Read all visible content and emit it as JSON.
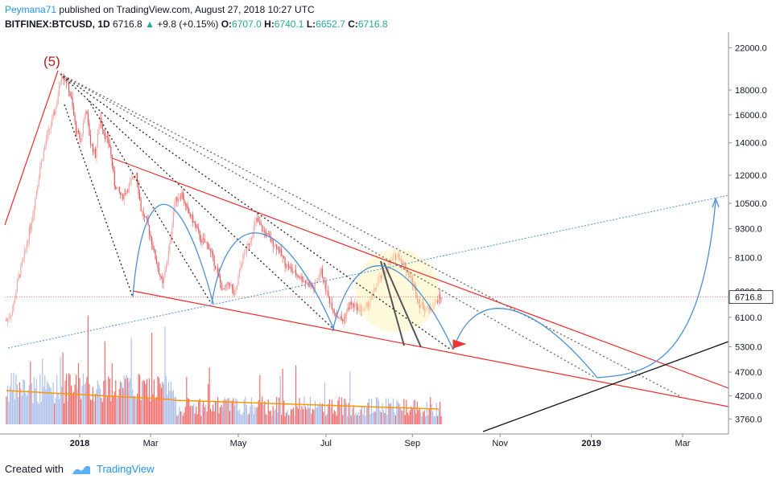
{
  "header": {
    "author": "Peymana71",
    "published_text": "published on TradingView.com, August 27, 2018 10:27 UTC",
    "symbol": "BITFINEX:BTCUSD, 1D",
    "last": "6716.8",
    "change": "+9.8 (+0.15%)",
    "open_label": "O:",
    "open": "6707.0",
    "high_label": "H:",
    "high": "6740.1",
    "low_label": "L:",
    "low": "6652.7",
    "close_label": "C:",
    "close": "6716.8"
  },
  "footer": {
    "created_with": "Created with",
    "brand": "TradingView"
  },
  "colors": {
    "up": "#26a69a",
    "down": "#ef5350",
    "candle_up": "#f0a8a5",
    "candle_down": "#e0585a",
    "trendline": "#ef2b2b",
    "arc": "#4a90d9",
    "volume_ma": "#ff9800",
    "accent": "#2196f3"
  },
  "chart_data": {
    "type": "candlestick",
    "symbol": "BITFINEX:BTCUSD",
    "interval": "1D",
    "y_scale": "log",
    "ylim": [
      3500,
      23000
    ],
    "y_ticks": [
      22000,
      18000,
      16000,
      14000,
      12000,
      10500,
      9300,
      8100,
      6900,
      6100,
      5300,
      4700,
      4200,
      3760
    ],
    "y_tick_labels": [
      "22000.0",
      "18000.0",
      "16000.0",
      "14000.0",
      "12000.0",
      "10500.0",
      "9300.0",
      "8100.0",
      "6900.0",
      "6100.0",
      "5300.0",
      "4700.0",
      "4200.0",
      "3760.0"
    ],
    "x_ticks": [
      "2018",
      "Mar",
      "May",
      "Jul",
      "Sep",
      "Nov",
      "2019",
      "Mar"
    ],
    "last_price_label": "6716.8",
    "wave_label": "(5)",
    "price_path": [
      [
        0,
        6000
      ],
      [
        5,
        6300
      ],
      [
        10,
        7400
      ],
      [
        15,
        8200
      ],
      [
        22,
        10000
      ],
      [
        28,
        12500
      ],
      [
        34,
        14500
      ],
      [
        38,
        15500
      ],
      [
        42,
        17000
      ],
      [
        46,
        19500
      ],
      [
        50,
        18800
      ],
      [
        54,
        17200
      ],
      [
        58,
        14800
      ],
      [
        62,
        14200
      ],
      [
        66,
        16500
      ],
      [
        70,
        14000
      ],
      [
        74,
        13200
      ],
      [
        78,
        15800
      ],
      [
        82,
        14500
      ],
      [
        86,
        13800
      ],
      [
        90,
        11500
      ],
      [
        96,
        10800
      ],
      [
        102,
        11400
      ],
      [
        108,
        12200
      ],
      [
        112,
        10200
      ],
      [
        118,
        9400
      ],
      [
        124,
        8100
      ],
      [
        130,
        7100
      ],
      [
        136,
        8600
      ],
      [
        140,
        10600
      ],
      [
        146,
        11000
      ],
      [
        150,
        10200
      ],
      [
        156,
        9600
      ],
      [
        162,
        8800
      ],
      [
        168,
        8600
      ],
      [
        174,
        7800
      ],
      [
        180,
        6900
      ],
      [
        186,
        7200
      ],
      [
        190,
        6700
      ],
      [
        196,
        8000
      ],
      [
        202,
        8700
      ],
      [
        208,
        9700
      ],
      [
        214,
        9200
      ],
      [
        220,
        8800
      ],
      [
        226,
        8500
      ],
      [
        232,
        7900
      ],
      [
        238,
        7600
      ],
      [
        244,
        7400
      ],
      [
        250,
        7200
      ],
      [
        256,
        7000
      ],
      [
        262,
        7600
      ],
      [
        268,
        6700
      ],
      [
        274,
        6200
      ],
      [
        280,
        6000
      ],
      [
        286,
        6500
      ],
      [
        292,
        6400
      ],
      [
        298,
        6300
      ],
      [
        304,
        6700
      ],
      [
        310,
        7300
      ],
      [
        316,
        7600
      ],
      [
        322,
        8100
      ],
      [
        326,
        8200
      ],
      [
        330,
        7900
      ],
      [
        336,
        7400
      ],
      [
        340,
        7000
      ],
      [
        344,
        6500
      ],
      [
        348,
        6400
      ],
      [
        352,
        6300
      ],
      [
        356,
        6500
      ],
      [
        360,
        6700
      ],
      [
        362,
        6716.8
      ]
    ]
  }
}
